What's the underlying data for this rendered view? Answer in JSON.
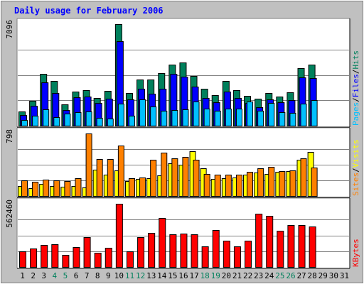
{
  "chart_data": {
    "title": "Daily usage for February 2006",
    "days": [
      "1",
      "2",
      "3",
      "4",
      "5",
      "6",
      "7",
      "8",
      "9",
      "10",
      "11",
      "12",
      "13",
      "14",
      "15",
      "16",
      "17",
      "18",
      "19",
      "20",
      "21",
      "22",
      "23",
      "24",
      "25",
      "26",
      "27",
      "28",
      "29",
      "30",
      "31"
    ],
    "weekend_days": [
      "4",
      "5",
      "11",
      "12",
      "18",
      "19",
      "25",
      "26"
    ],
    "colors": {
      "background": "#c0c0c0",
      "plot_bg": "#ffffff",
      "title": "#0000ff",
      "axis_text": "#000000",
      "weekday_tick": "#000000",
      "weekend_tick": "#00805c",
      "grid": "#808080",
      "hits": "#00805c",
      "files": "#0000ff",
      "pages": "#00c0ff",
      "visits": "#ffff00",
      "sites": "#ff8000",
      "kbytes": "#ff0000",
      "label_slash": "#000000"
    },
    "panels": [
      {
        "type": "bar",
        "name": "hits-files-pages",
        "y_max": 7096,
        "y_label": "7096",
        "legend": [
          {
            "key": "pages",
            "text": "Pages"
          },
          {
            "key": "files",
            "text": "Files"
          },
          {
            "key": "hits",
            "text": "Hits"
          }
        ],
        "series": [
          {
            "key": "hits",
            "name": "Hits",
            "values": [
              980,
              1750,
              3640,
              3120,
              1480,
              2360,
              2480,
              1950,
              2430,
              7096,
              2280,
              3250,
              3240,
              3680,
              4280,
              4430,
              3480,
              2580,
              2130,
              3120,
              2470,
              2060,
              1870,
              2260,
              2050,
              2320,
              4000,
              4270
            ]
          },
          {
            "key": "files",
            "name": "Files",
            "values": [
              720,
              1380,
              3040,
              2260,
              1090,
              1980,
              2020,
              1570,
              1890,
              5900,
              1850,
              2560,
              2220,
              2600,
              3630,
              3420,
              2740,
              1930,
              1630,
              2360,
              1940,
              1580,
              1270,
              1860,
              1630,
              1790,
              3390,
              3310
            ]
          },
          {
            "key": "pages",
            "name": "Pages",
            "values": [
              420,
              700,
              1150,
              610,
              850,
              940,
              970,
              530,
              510,
              1550,
              680,
              1850,
              1320,
              1040,
              1080,
              1120,
              1690,
              1180,
              1040,
              1210,
              1170,
              1680,
              1020,
              1580,
              950,
              870,
              1540,
              1810
            ]
          }
        ]
      },
      {
        "type": "bar",
        "name": "visits-sites",
        "y_max": 798,
        "y_label": "798",
        "legend": [
          {
            "key": "sites",
            "text": "Sites"
          },
          {
            "key": "visits",
            "text": "Visits"
          }
        ],
        "series": [
          {
            "key": "visits",
            "name": "Visits",
            "values": [
              130,
              100,
              150,
              130,
              120,
              130,
              110,
              340,
              270,
              330,
              190,
              220,
              230,
              260,
              420,
              400,
              570,
              350,
              220,
              230,
              240,
              270,
              300,
              280,
              310,
              320,
              460,
              560
            ]
          },
          {
            "key": "sites",
            "name": "Sites",
            "values": [
              200,
              180,
              210,
              200,
              190,
              230,
              798,
              470,
              470,
              640,
              230,
              240,
              460,
              550,
              480,
              500,
              460,
              280,
              270,
              270,
              270,
              310,
              350,
              370,
              320,
              330,
              480,
              360
            ]
          }
        ]
      },
      {
        "type": "bar",
        "name": "kbytes",
        "y_max": 562460,
        "y_label": "562460",
        "legend": [
          {
            "key": "kbytes",
            "text": "KBytes"
          }
        ],
        "series": [
          {
            "key": "kbytes",
            "name": "KBytes",
            "values": [
              140000,
              166000,
              193000,
              200000,
              110000,
              176000,
              266000,
              125000,
              173000,
              562460,
              138000,
              264000,
              303000,
              436000,
              293000,
              300000,
              291000,
              186000,
              327000,
              231000,
              184000,
              233000,
              474000,
              455000,
              324000,
              373000,
              372000,
              358000
            ]
          }
        ]
      }
    ]
  }
}
